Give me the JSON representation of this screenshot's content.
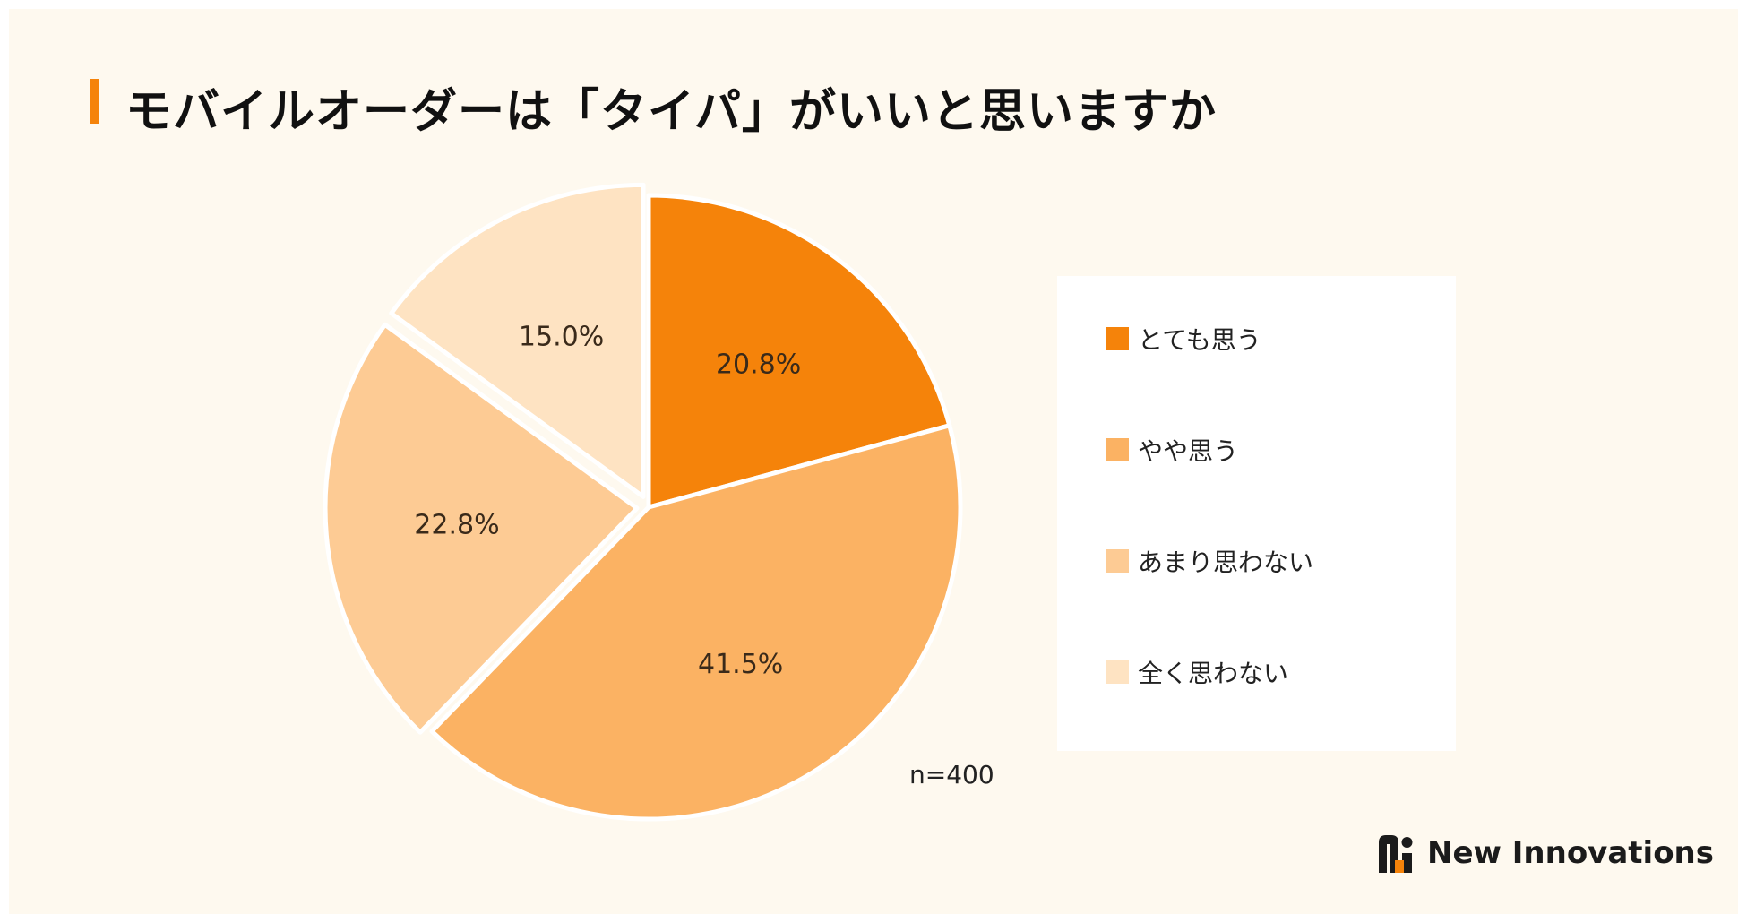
{
  "title": "モバイルオーダーは「タイパ」がいいと思いますか",
  "note": "n=400",
  "brand": {
    "name": "New Innovations"
  },
  "colors": {
    "accent": "#f5830a",
    "background": "#fef9ef"
  },
  "chart_data": {
    "type": "pie",
    "title": "モバイルオーダーは「タイパ」がいいと思いますか",
    "categories": [
      "とても思う",
      "やや思う",
      "あまり思わない",
      "全く思わない"
    ],
    "values": [
      20.8,
      41.5,
      22.8,
      15.0
    ],
    "value_labels": [
      "20.8%",
      "41.5%",
      "22.8%",
      "15.0%"
    ],
    "colors": [
      "#f5830a",
      "#fbb263",
      "#fdcb94",
      "#fee3c2"
    ],
    "exploded": [
      false,
      false,
      true,
      true
    ],
    "start_angle_deg": 0,
    "direction": "clockwise",
    "legend_position": "right",
    "sample_size": "n=400"
  }
}
